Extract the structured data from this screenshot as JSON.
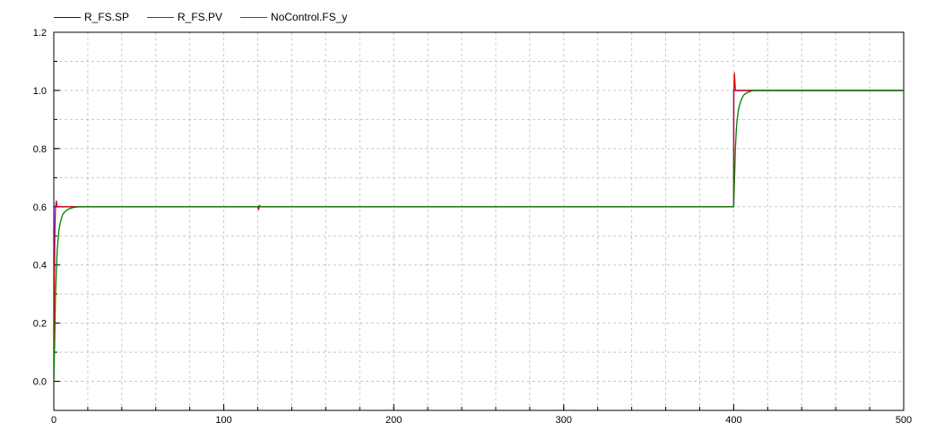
{
  "chart_data": {
    "type": "line",
    "title": "",
    "xlabel": "",
    "ylabel": "",
    "xlim": [
      0,
      500
    ],
    "ylim": [
      -0.1,
      1.2
    ],
    "x_ticks": [
      0,
      100,
      200,
      300,
      400,
      500
    ],
    "y_ticks": [
      0.0,
      0.2,
      0.4,
      0.6,
      0.8,
      1.0,
      1.2
    ],
    "x_tick_labels": [
      "0",
      "100",
      "200",
      "300",
      "400",
      "500"
    ],
    "y_tick_labels": [
      "0.0",
      "0.2",
      "0.4",
      "0.6",
      "0.8",
      "1.0",
      "1.2"
    ],
    "grid": true,
    "legend_position": "top-left",
    "series": [
      {
        "name": "R_FS.SP",
        "color": "#0000ff",
        "x": [
          0,
          0,
          400,
          400,
          500
        ],
        "y": [
          0.0,
          0.6,
          0.6,
          1.0,
          1.0
        ]
      },
      {
        "name": "R_FS.PV",
        "color": "#e00000",
        "x": [
          0,
          0.3,
          0.6,
          1,
          1.5,
          2,
          3,
          4,
          6,
          8,
          10,
          14,
          18,
          120,
          120.5,
          121,
          121.5,
          400,
          400.1,
          400.4,
          401,
          401.5,
          402,
          403,
          405,
          408,
          412,
          500
        ],
        "y": [
          0.0,
          0.3,
          0.5,
          0.6,
          0.62,
          0.6,
          0.6,
          0.6,
          0.6,
          0.6,
          0.6,
          0.6,
          0.6,
          0.6,
          0.59,
          0.605,
          0.6,
          0.6,
          1.0,
          1.06,
          1.0,
          1.0,
          1.0,
          1.0,
          1.0,
          1.0,
          1.0,
          1.0
        ]
      },
      {
        "name": "NoControl.FS_y",
        "color": "#008000",
        "x": [
          0,
          0.5,
          1,
          2,
          3,
          4,
          5,
          6,
          8,
          10,
          12,
          15,
          18,
          120,
          400,
          400.4,
          401,
          401.5,
          402,
          403,
          404,
          405,
          406,
          408,
          410,
          412,
          500
        ],
        "y": [
          0.0,
          0.13,
          0.3,
          0.45,
          0.52,
          0.55,
          0.57,
          0.58,
          0.59,
          0.595,
          0.598,
          0.6,
          0.6,
          0.6,
          0.6,
          0.68,
          0.8,
          0.86,
          0.9,
          0.94,
          0.96,
          0.975,
          0.985,
          0.993,
          0.997,
          1.0,
          1.0
        ]
      }
    ]
  }
}
